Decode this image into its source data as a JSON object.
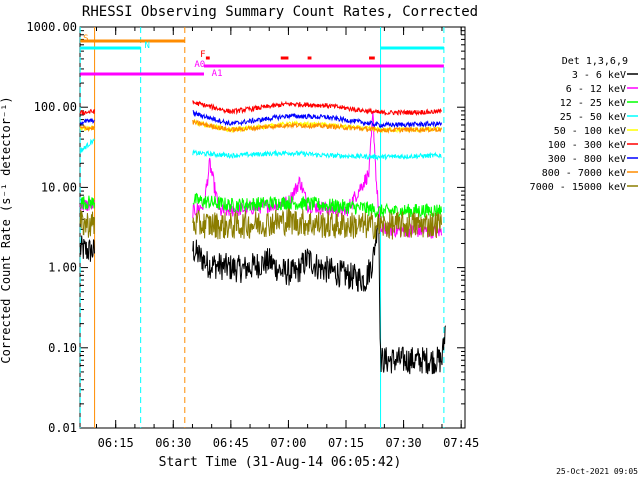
{
  "chart_data": {
    "type": "line",
    "title": "RHESSI Observing Summary Count Rates, Corrected",
    "xlabel": "Start Time (31-Aug-14 06:05:42)",
    "ylabel": "Corrected Count Rate (s⁻¹ detector⁻¹)",
    "y_scale": "log",
    "ylim": [
      0.01,
      1000
    ],
    "xlim": [
      "06:05:42",
      "07:46:00"
    ],
    "x_ticks": [
      "06:15",
      "06:30",
      "06:45",
      "07:00",
      "07:15",
      "07:30",
      "07:45"
    ],
    "y_ticks": [
      "0.01",
      "0.10",
      "1.00",
      "10.00",
      "100.00",
      "1000.00"
    ],
    "timestamp": "25-Oct-2021 09:05",
    "legend_title": "Det 1,3,6,9",
    "legend_position": "right",
    "series": [
      {
        "name": "3 - 6 keV",
        "color": "#000000",
        "points": [
          [
            "06:05:45",
            1.7
          ],
          [
            "06:09:00",
            1.6
          ],
          [
            "06:35:00",
            1.7
          ],
          [
            "06:39:00",
            1.1
          ],
          [
            "06:45:00",
            1.0
          ],
          [
            "06:48:00",
            0.95
          ],
          [
            "06:55:00",
            1.2
          ],
          [
            "06:58:00",
            0.9
          ],
          [
            "07:02:00",
            0.85
          ],
          [
            "07:05:00",
            1.3
          ],
          [
            "07:08:00",
            1.0
          ],
          [
            "07:15:00",
            0.8
          ],
          [
            "07:20:00",
            0.7
          ],
          [
            "07:22:00",
            1.2
          ],
          [
            "07:23:30",
            5.0
          ],
          [
            "07:24:00",
            0.07
          ],
          [
            "07:40:00",
            0.07
          ],
          [
            "07:41:00",
            0.2
          ]
        ]
      },
      {
        "name": "6 - 12 keV",
        "color": "#ff00ff",
        "points": [
          [
            "06:05:45",
            6.0
          ],
          [
            "06:09:00",
            6.0
          ],
          [
            "06:35:00",
            5.0
          ],
          [
            "06:38:00",
            6.0
          ],
          [
            "06:39:30",
            20.0
          ],
          [
            "06:42:00",
            5.0
          ],
          [
            "06:50:00",
            5.5
          ],
          [
            "07:00:00",
            6.5
          ],
          [
            "07:03:00",
            12.0
          ],
          [
            "07:05:00",
            6.0
          ],
          [
            "07:15:00",
            5.0
          ],
          [
            "07:21:00",
            15.0
          ],
          [
            "07:22:00",
            80.0
          ],
          [
            "07:23:00",
            10.0
          ],
          [
            "07:24:00",
            3.0
          ],
          [
            "07:40:00",
            2.8
          ]
        ]
      },
      {
        "name": "12 - 25 keV",
        "color": "#00ff00",
        "points": [
          [
            "06:05:45",
            6.5
          ],
          [
            "06:09:00",
            6.5
          ],
          [
            "06:35:00",
            7.0
          ],
          [
            "06:45:00",
            6.0
          ],
          [
            "07:00:00",
            6.5
          ],
          [
            "07:10:00",
            6.0
          ],
          [
            "07:20:00",
            5.5
          ],
          [
            "07:24:00",
            5.0
          ],
          [
            "07:40:00",
            5.2
          ]
        ]
      },
      {
        "name": "25 - 50 keV",
        "color": "#00ffff",
        "points": [
          [
            "06:05:45",
            28.0
          ],
          [
            "06:09:00",
            38.0
          ],
          [
            "06:35:00",
            27.0
          ],
          [
            "06:45:00",
            25.0
          ],
          [
            "07:00:00",
            27.0
          ],
          [
            "07:10:00",
            25.0
          ],
          [
            "07:24:00",
            24.0
          ],
          [
            "07:40:00",
            25.0
          ]
        ]
      },
      {
        "name": "50 - 100 keV",
        "color": "#ffff00",
        "points": [
          [
            "06:05:45",
            55.0
          ],
          [
            "06:09:00",
            55.0
          ],
          [
            "06:35:00",
            65.0
          ],
          [
            "06:45:00",
            52.0
          ],
          [
            "07:00:00",
            62.0
          ],
          [
            "07:10:00",
            60.0
          ],
          [
            "07:24:00",
            52.0
          ],
          [
            "07:40:00",
            53.0
          ]
        ]
      },
      {
        "name": "100 - 300 keV",
        "color": "#ff0000",
        "points": [
          [
            "06:05:45",
            85.0
          ],
          [
            "06:09:00",
            88.0
          ],
          [
            "06:35:00",
            115.0
          ],
          [
            "06:45:00",
            88.0
          ],
          [
            "07:00:00",
            110.0
          ],
          [
            "07:10:00",
            105.0
          ],
          [
            "07:24:00",
            85.0
          ],
          [
            "07:40:00",
            88.0
          ]
        ]
      },
      {
        "name": "300 - 800 keV",
        "color": "#0000ff",
        "points": [
          [
            "06:05:45",
            65.0
          ],
          [
            "06:09:00",
            68.0
          ],
          [
            "06:35:00",
            85.0
          ],
          [
            "06:45:00",
            62.0
          ],
          [
            "07:00:00",
            78.0
          ],
          [
            "07:10:00",
            75.0
          ],
          [
            "07:24:00",
            60.0
          ],
          [
            "07:40:00",
            62.0
          ]
        ]
      },
      {
        "name": "800 - 7000 keV",
        "color": "#ff8c00",
        "points": [
          [
            "06:05:45",
            55.0
          ],
          [
            "06:09:00",
            55.0
          ],
          [
            "06:35:00",
            65.0
          ],
          [
            "06:45:00",
            52.0
          ],
          [
            "07:00:00",
            60.0
          ],
          [
            "07:10:00",
            58.0
          ],
          [
            "07:24:00",
            52.0
          ],
          [
            "07:40:00",
            53.0
          ]
        ]
      },
      {
        "name": "7000 - 15000 keV",
        "color": "#8b7d00",
        "points": [
          [
            "06:05:45",
            3.5
          ],
          [
            "06:09:00",
            3.5
          ],
          [
            "06:35:00",
            3.5
          ],
          [
            "06:45:00",
            3.3
          ],
          [
            "07:00:00",
            3.8
          ],
          [
            "07:10:00",
            3.4
          ],
          [
            "07:24:00",
            3.3
          ],
          [
            "07:40:00",
            3.5
          ]
        ]
      }
    ],
    "flag_bars": [
      {
        "label": "S",
        "color": "#ff8c00",
        "segments": [
          [
            "06:05:45",
            "06:09:30"
          ],
          [
            "06:09:30",
            "06:33:00"
          ]
        ]
      },
      {
        "label": "N",
        "color": "#00ffff",
        "segments": [
          [
            "06:05:45",
            "06:21:30"
          ],
          [
            "07:24:00",
            "07:40:30"
          ]
        ]
      },
      {
        "label": "F",
        "color": "#ff0000",
        "segments": [
          [
            "06:38:30",
            "06:39:30"
          ],
          [
            "06:58:00",
            "07:00:00"
          ],
          [
            "07:05:00",
            "07:06:00"
          ],
          [
            "07:21:00",
            "07:22:30"
          ]
        ]
      },
      {
        "label": "A0",
        "color": "#ff00ff",
        "segments": [
          [
            "06:38:00",
            "07:40:30"
          ]
        ]
      },
      {
        "label": "A1",
        "color": "#ff00ff",
        "segments": [
          [
            "06:05:45",
            "06:38:00"
          ]
        ]
      }
    ],
    "vertical_lines": [
      {
        "time": "06:05:45",
        "color": "#00ffff",
        "style": "dashed"
      },
      {
        "time": "06:09:30",
        "color": "#ff8c00",
        "style": "solid"
      },
      {
        "time": "06:21:30",
        "color": "#00ffff",
        "style": "dashed"
      },
      {
        "time": "06:33:00",
        "color": "#ff8c00",
        "style": "dashed"
      },
      {
        "time": "07:24:00",
        "color": "#00ffff",
        "style": "solid"
      },
      {
        "time": "07:40:30",
        "color": "#00ffff",
        "style": "dashed"
      }
    ],
    "gaps": [
      [
        "06:09:30",
        "06:35:00"
      ]
    ]
  }
}
